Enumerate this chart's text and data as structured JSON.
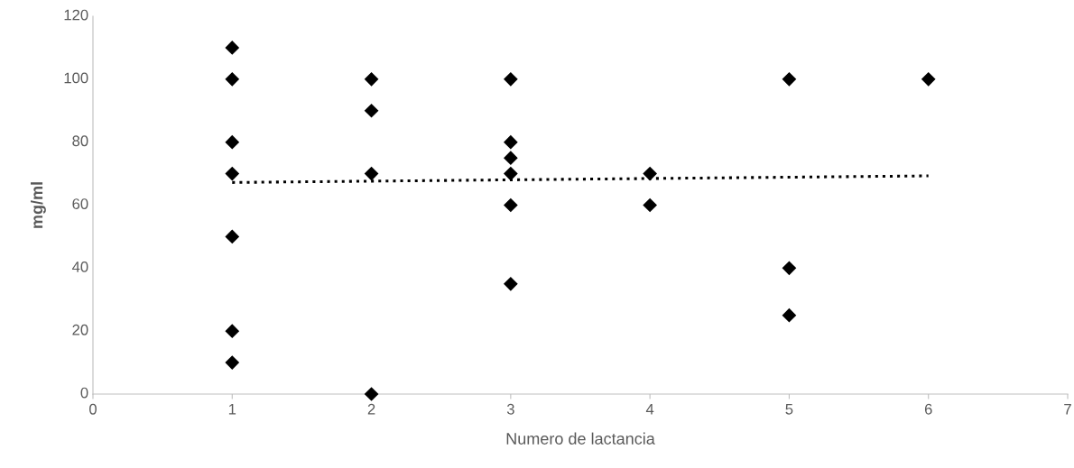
{
  "chart_data": {
    "type": "scatter",
    "xlabel": "Numero de lactancia",
    "ylabel": "mg/ml",
    "xlim": [
      0,
      7
    ],
    "xticks": [
      0,
      1,
      2,
      3,
      4,
      5,
      6,
      7
    ],
    "ylim": [
      0,
      120
    ],
    "yticks": [
      0,
      20,
      40,
      60,
      80,
      100,
      120
    ],
    "grid": false,
    "legend": false,
    "marker": "diamond",
    "series": [
      {
        "type": "scatter",
        "color": "#000000",
        "x": [
          1,
          1,
          1,
          1,
          1,
          1,
          1,
          2,
          2,
          2,
          2,
          3,
          3,
          3,
          3,
          3,
          3,
          4,
          4,
          5,
          5,
          5,
          6
        ],
        "values": [
          110,
          100,
          80,
          70,
          50,
          20,
          10,
          100,
          90,
          70,
          0,
          100,
          80,
          75,
          70,
          60,
          35,
          70,
          60,
          100,
          40,
          25,
          100
        ]
      },
      {
        "type": "line",
        "color": "#000000",
        "line_style": "dotted",
        "marker": "none",
        "x": [
          1,
          6
        ],
        "values": [
          67.2,
          69.3
        ]
      }
    ]
  }
}
